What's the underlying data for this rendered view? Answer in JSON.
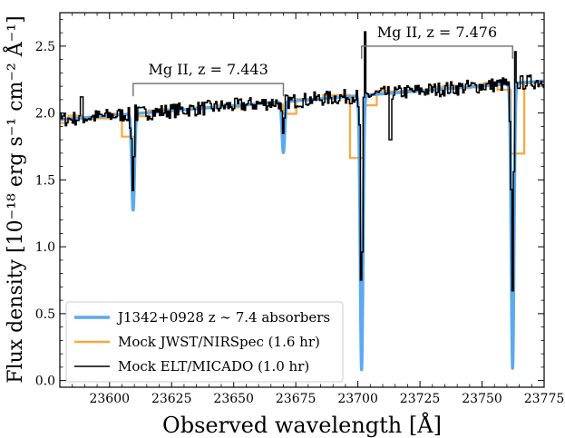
{
  "chart_data": {
    "type": "line",
    "title": "",
    "xlabel": "Observed wavelength [Å]",
    "ylabel": "Flux density [10⁻¹⁸ erg s⁻¹ cm⁻² Å⁻¹]",
    "xlim": [
      23580,
      23775
    ],
    "ylim": [
      -0.05,
      2.75
    ],
    "xticks": [
      23600,
      23625,
      23650,
      23675,
      23700,
      23725,
      23750,
      23775
    ],
    "yticks": [
      0.0,
      0.5,
      1.0,
      1.5,
      2.0,
      2.5
    ],
    "xtick_labels": [
      "23600",
      "23625",
      "23650",
      "23675",
      "23700",
      "23725",
      "23750",
      "23775"
    ],
    "ytick_labels": [
      "0.0",
      "0.5",
      "1.0",
      "1.5",
      "2.0",
      "2.5"
    ],
    "continuum": {
      "x": [
        23580,
        23775
      ],
      "y": [
        1.95,
        2.24
      ]
    },
    "absorbers": [
      {
        "label": "Mg II, z = 7.443",
        "lines": [
          23609.5,
          23670.0
        ],
        "bracket_y": 2.22,
        "model_depth": [
          0.72,
          0.38
        ]
      },
      {
        "label": "Mg II, z = 7.476",
        "lines": [
          23701.5,
          23762.3
        ],
        "bracket_y": 2.5,
        "model_depth": [
          2.05,
          2.13
        ]
      }
    ],
    "series": [
      {
        "name": "J1342+0928 z ∼ 7.4 absorbers",
        "color": "#5aaaf0",
        "style": "model"
      },
      {
        "name": "Mock JWST/NIRSpec (1.6 hr)",
        "color": "#ffa53c",
        "style": "binned"
      },
      {
        "name": "Mock ELT/MICADO (1.0 hr)",
        "color": "#000000",
        "style": "noisy"
      }
    ],
    "legend_position": "lower-left"
  }
}
